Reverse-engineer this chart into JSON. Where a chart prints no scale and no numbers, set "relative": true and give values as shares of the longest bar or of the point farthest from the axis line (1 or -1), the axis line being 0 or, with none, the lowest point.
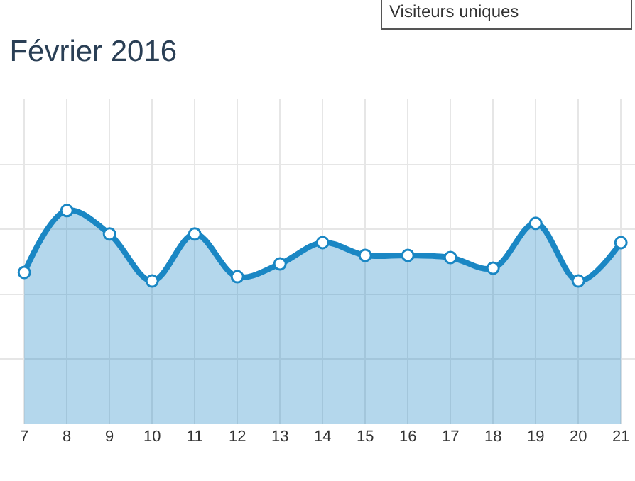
{
  "chart_data": {
    "type": "area",
    "title": "Février 2016",
    "annotations": [
      "Visiteurs uniques"
    ],
    "categories": [
      "7",
      "8",
      "9",
      "10",
      "11",
      "12",
      "13",
      "14",
      "15",
      "16",
      "17",
      "18",
      "19",
      "20",
      "21"
    ],
    "series": [
      {
        "color": "#1a87c4",
        "values": [
          0.71,
          1,
          0.89,
          0.67,
          0.89,
          0.69,
          0.75,
          0.85,
          0.79,
          0.79,
          0.78,
          0.73,
          0.94,
          0.67,
          0.85
        ]
      }
    ],
    "relative": true,
    "grid": true,
    "marker": "circle",
    "line_style": "solid"
  }
}
